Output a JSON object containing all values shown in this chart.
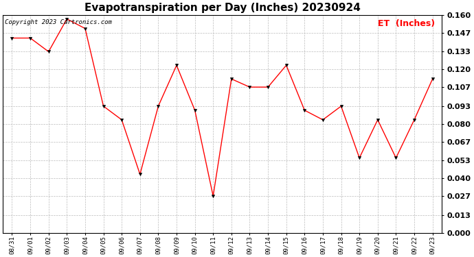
{
  "title": "Evapotranspiration per Day (Inches) 20230924",
  "copyright_text": "Copyright 2023 Cartronics.com",
  "legend_label": "ET  (Inches)",
  "dates": [
    "08/31",
    "09/01",
    "09/02",
    "09/03",
    "09/04",
    "09/05",
    "09/06",
    "09/07",
    "09/08",
    "09/09",
    "09/10",
    "09/11",
    "09/12",
    "09/13",
    "09/14",
    "09/15",
    "09/16",
    "09/17",
    "09/18",
    "09/19",
    "09/20",
    "09/21",
    "09/22",
    "09/23"
  ],
  "values": [
    0.143,
    0.143,
    0.133,
    0.157,
    0.15,
    0.093,
    0.083,
    0.043,
    0.093,
    0.123,
    0.09,
    0.027,
    0.113,
    0.107,
    0.107,
    0.123,
    0.09,
    0.083,
    0.093,
    0.055,
    0.083,
    0.055,
    0.083,
    0.113
  ],
  "line_color": "#ff0000",
  "marker_color": "#000000",
  "grid_color": "#bbbbbb",
  "background_color": "#ffffff",
  "title_fontsize": 11,
  "copyright_fontsize": 6.5,
  "legend_fontsize": 9,
  "ylim": [
    0.0,
    0.16
  ],
  "yticks": [
    0.0,
    0.013,
    0.027,
    0.04,
    0.053,
    0.067,
    0.08,
    0.093,
    0.107,
    0.12,
    0.133,
    0.147,
    0.16
  ]
}
